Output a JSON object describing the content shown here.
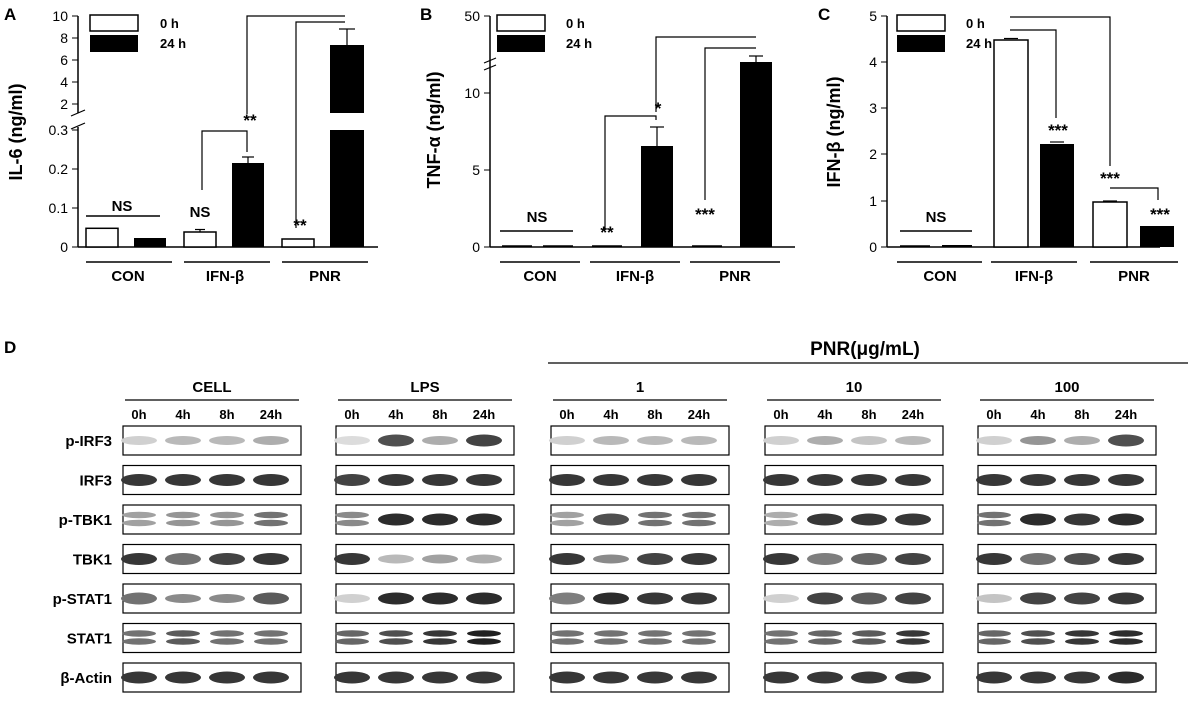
{
  "chart_data": [
    {
      "type": "bar",
      "panel": "A",
      "ylabel": "IL-6 (ng/ml)",
      "categories": [
        "CON",
        "IFN-β",
        "PNR"
      ],
      "series": [
        {
          "name": "0 h",
          "values": [
            0.048,
            0.038,
            0.02
          ],
          "errors": [
            0.002,
            0.006,
            0.003
          ]
        },
        {
          "name": "24 h",
          "values": [
            0.023,
            0.215,
            7.4
          ],
          "errors": [
            0.002,
            0.025,
            1.4
          ]
        }
      ],
      "axis_break": {
        "lower": [
          0,
          0.3
        ],
        "upper": [
          0.3,
          10
        ]
      },
      "yticks_lower": [
        "0",
        "0.1",
        "0.2",
        "0.3"
      ],
      "yticks_upper": [
        "2",
        "4",
        "6",
        "8",
        "10"
      ],
      "significance": [
        "NS",
        "NS",
        "**",
        "**"
      ]
    },
    {
      "type": "bar",
      "panel": "B",
      "ylabel": "TNF-α (ng/ml)",
      "categories": [
        "CON",
        "IFN-β",
        "PNR"
      ],
      "series": [
        {
          "name": "0 h",
          "values": [
            0.05,
            0.05,
            0.05
          ],
          "errors": [
            0.02,
            0.02,
            0.02
          ]
        },
        {
          "name": "24 h",
          "values": [
            0.05,
            6.5,
            12.0
          ],
          "errors": [
            0.02,
            1.3,
            0.4
          ]
        }
      ],
      "ylim": [
        0,
        50
      ],
      "yticks": [
        "0",
        "5",
        "10",
        "50"
      ],
      "significance": [
        "NS",
        "**",
        "*",
        "***"
      ]
    },
    {
      "type": "bar",
      "panel": "C",
      "ylabel": "IFN-β (ng/ml)",
      "categories": [
        "CON",
        "IFN-β",
        "PNR"
      ],
      "series": [
        {
          "name": "0 h",
          "values": [
            0.01,
            4.5,
            0.97
          ],
          "errors": [
            0.005,
            0.03,
            0.02
          ]
        },
        {
          "name": "24 h",
          "values": [
            0.03,
            2.22,
            0.45
          ],
          "errors": [
            0.005,
            0.05,
            0.02
          ]
        }
      ],
      "ylim": [
        0,
        5
      ],
      "yticks": [
        "0",
        "1",
        "2",
        "3",
        "4",
        "5"
      ],
      "significance": [
        "NS",
        "***",
        "***",
        "***"
      ]
    }
  ],
  "panel_letters": [
    "A",
    "B",
    "C",
    "D"
  ],
  "blot": {
    "header": "PNR(μg/mL)",
    "groups": [
      "CELL",
      "LPS",
      "1",
      "10",
      "100"
    ],
    "timepoints": [
      "0h",
      "4h",
      "8h",
      "24h"
    ],
    "proteins": [
      "p-IRF3",
      "IRF3",
      "p-TBK1",
      "TBK1",
      "p-STAT1",
      "STAT1",
      "β-Actin"
    ]
  }
}
